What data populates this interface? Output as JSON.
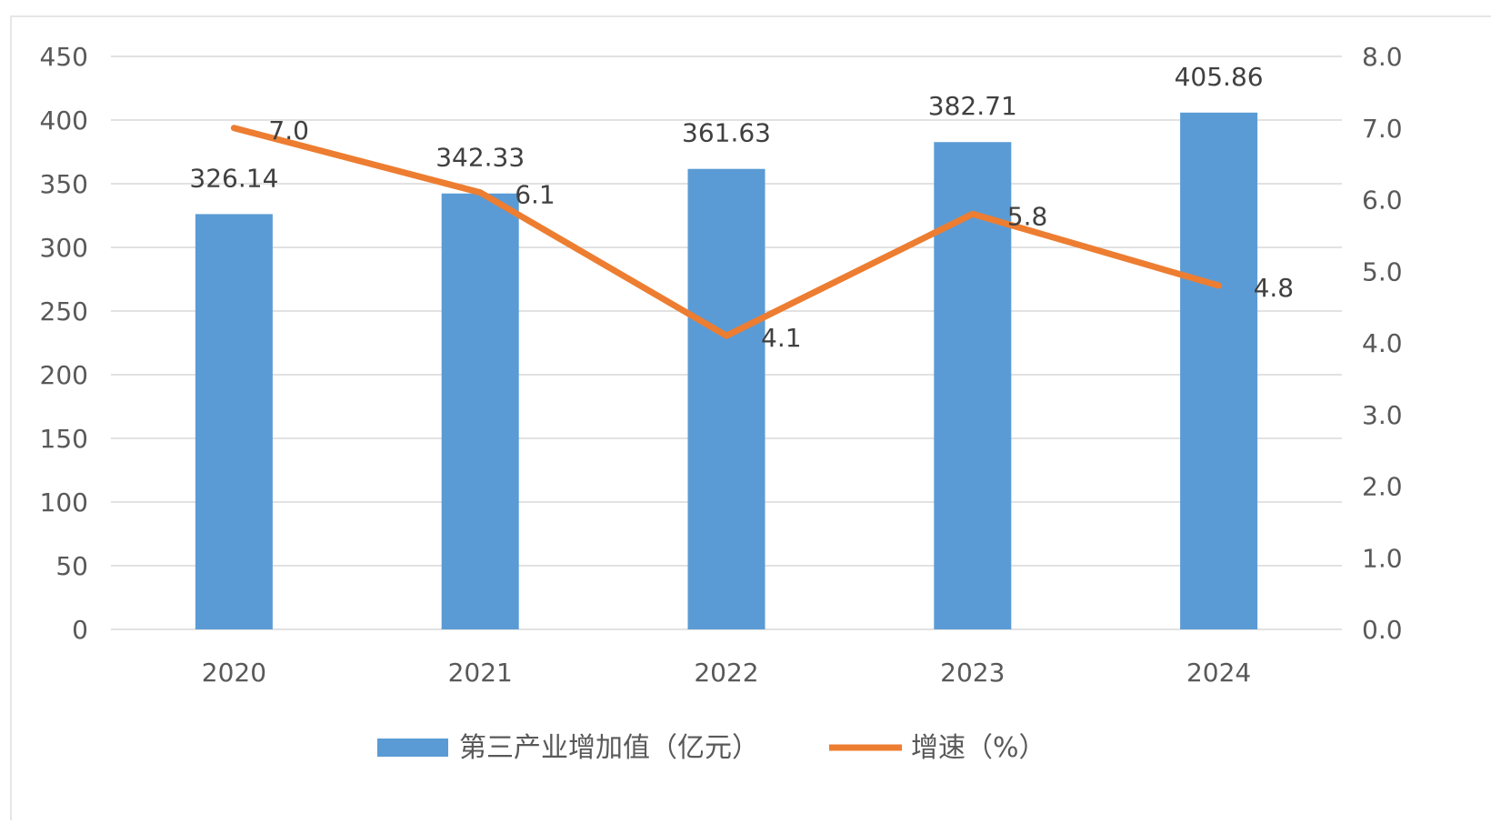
{
  "chart_data": {
    "type": "bar",
    "categories": [
      "2020",
      "2021",
      "2022",
      "2023",
      "2024"
    ],
    "series": [
      {
        "name": "第三产业增加值（亿元）",
        "type": "bar",
        "axis": "left",
        "values": [
          326.14,
          342.33,
          361.63,
          382.71,
          405.86
        ],
        "labels": [
          "326.14",
          "342.33",
          "361.63",
          "382.71",
          "405.86"
        ],
        "color": "#5b9bd5"
      },
      {
        "name": "增速（%）",
        "type": "line",
        "axis": "right",
        "values": [
          7.0,
          6.1,
          4.1,
          5.8,
          4.8
        ],
        "labels": [
          "7.0",
          "6.1",
          "4.1",
          "5.8",
          "4.8"
        ],
        "color": "#ed7d31"
      }
    ],
    "y_left": {
      "min": 0,
      "max": 450,
      "ticks": [
        "0",
        "50",
        "100",
        "150",
        "200",
        "250",
        "300",
        "350",
        "400",
        "450"
      ]
    },
    "y_right": {
      "min": 0,
      "max": 8,
      "ticks": [
        "0.0",
        "1.0",
        "2.0",
        "3.0",
        "4.0",
        "5.0",
        "6.0",
        "7.0",
        "8.0"
      ]
    },
    "grid": true,
    "legend": "bottom-center",
    "colors": {
      "grid": "#d9d9d9",
      "text": "#595959",
      "border": "#e6e6e6"
    }
  }
}
